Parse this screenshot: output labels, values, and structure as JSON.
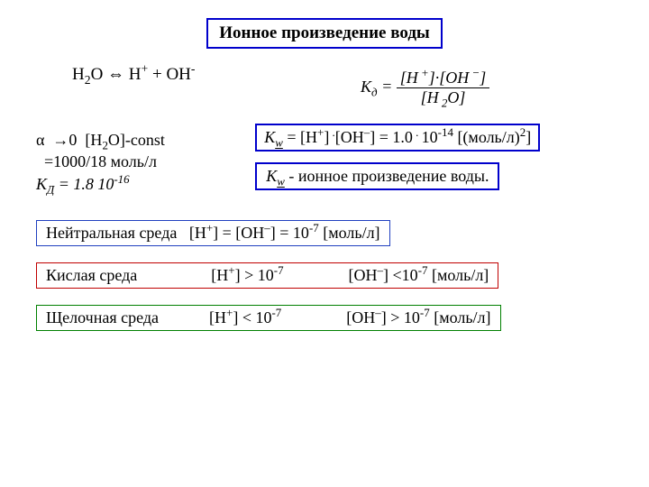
{
  "title": "Ионное произведение воды",
  "eq1_html": "H<sub>2</sub>O ⇔ H<sup>+</sup> + OH<sup>-</sup>",
  "kd_lhs_html": "<i>K<sub>д</sub></i> =",
  "kd_num_html": "[H<sup>&nbsp;+</sup>]·[OH<sup>&nbsp;−</sup>]",
  "kd_den_html": "[H<sub>&nbsp;2</sub>O]",
  "alpha_l1_html": "α&nbsp;&nbsp;→0&nbsp;&nbsp;[H<sub>2</sub>O]-const",
  "alpha_l2_html": "&nbsp;&nbsp;=1000/18 моль/л",
  "alpha_l3_html": "<span class='kd-italic'>К<sub>Д</sub>&nbsp;=&nbsp;1.8 10<sup>-16</sup></span>",
  "kw1_html": "<i>K<sub><u>w</u></sub></i> = [H<sup>+</sup>]<sup>&nbsp;.</sup>[OH<sup>–</sup>] = 1.0<sup>&nbsp;.&nbsp;</sup>10<sup>-14</sup> [(моль/л)<sup>2</sup>]",
  "kw2_html": "<i>K<sub><u>w</u></sub></i> - ионное произведение воды.",
  "neutral_html": "Нейтральная среда&nbsp;&nbsp;&nbsp;[H<sup>+</sup>] = [OH<sup>–</sup>] = 10<sup>-7</sup> [моль/л]",
  "acid_html": "Кислая среда<span class='colsp' style='width:82px'></span>[H<sup>+</sup>] &gt; 10<sup>-7</sup><span class='colsp' style='width:72px'></span>[OH<sup>–</sup>] &lt;10<sup>-7</sup> [моль/л]",
  "base_html": "Щелочная среда<span class='colsp' style='width:56px'></span>[H<sup>+</sup>] &lt; 10<sup>-7</sup><span class='colsp' style='width:72px'></span>[OH<sup>–</sup>] &gt; 10<sup>-7</sup> [моль/л]",
  "colors": {
    "blue": "#0000cc",
    "red": "#c00000",
    "green": "#008000",
    "text": "#000000",
    "background": "#ffffff"
  }
}
